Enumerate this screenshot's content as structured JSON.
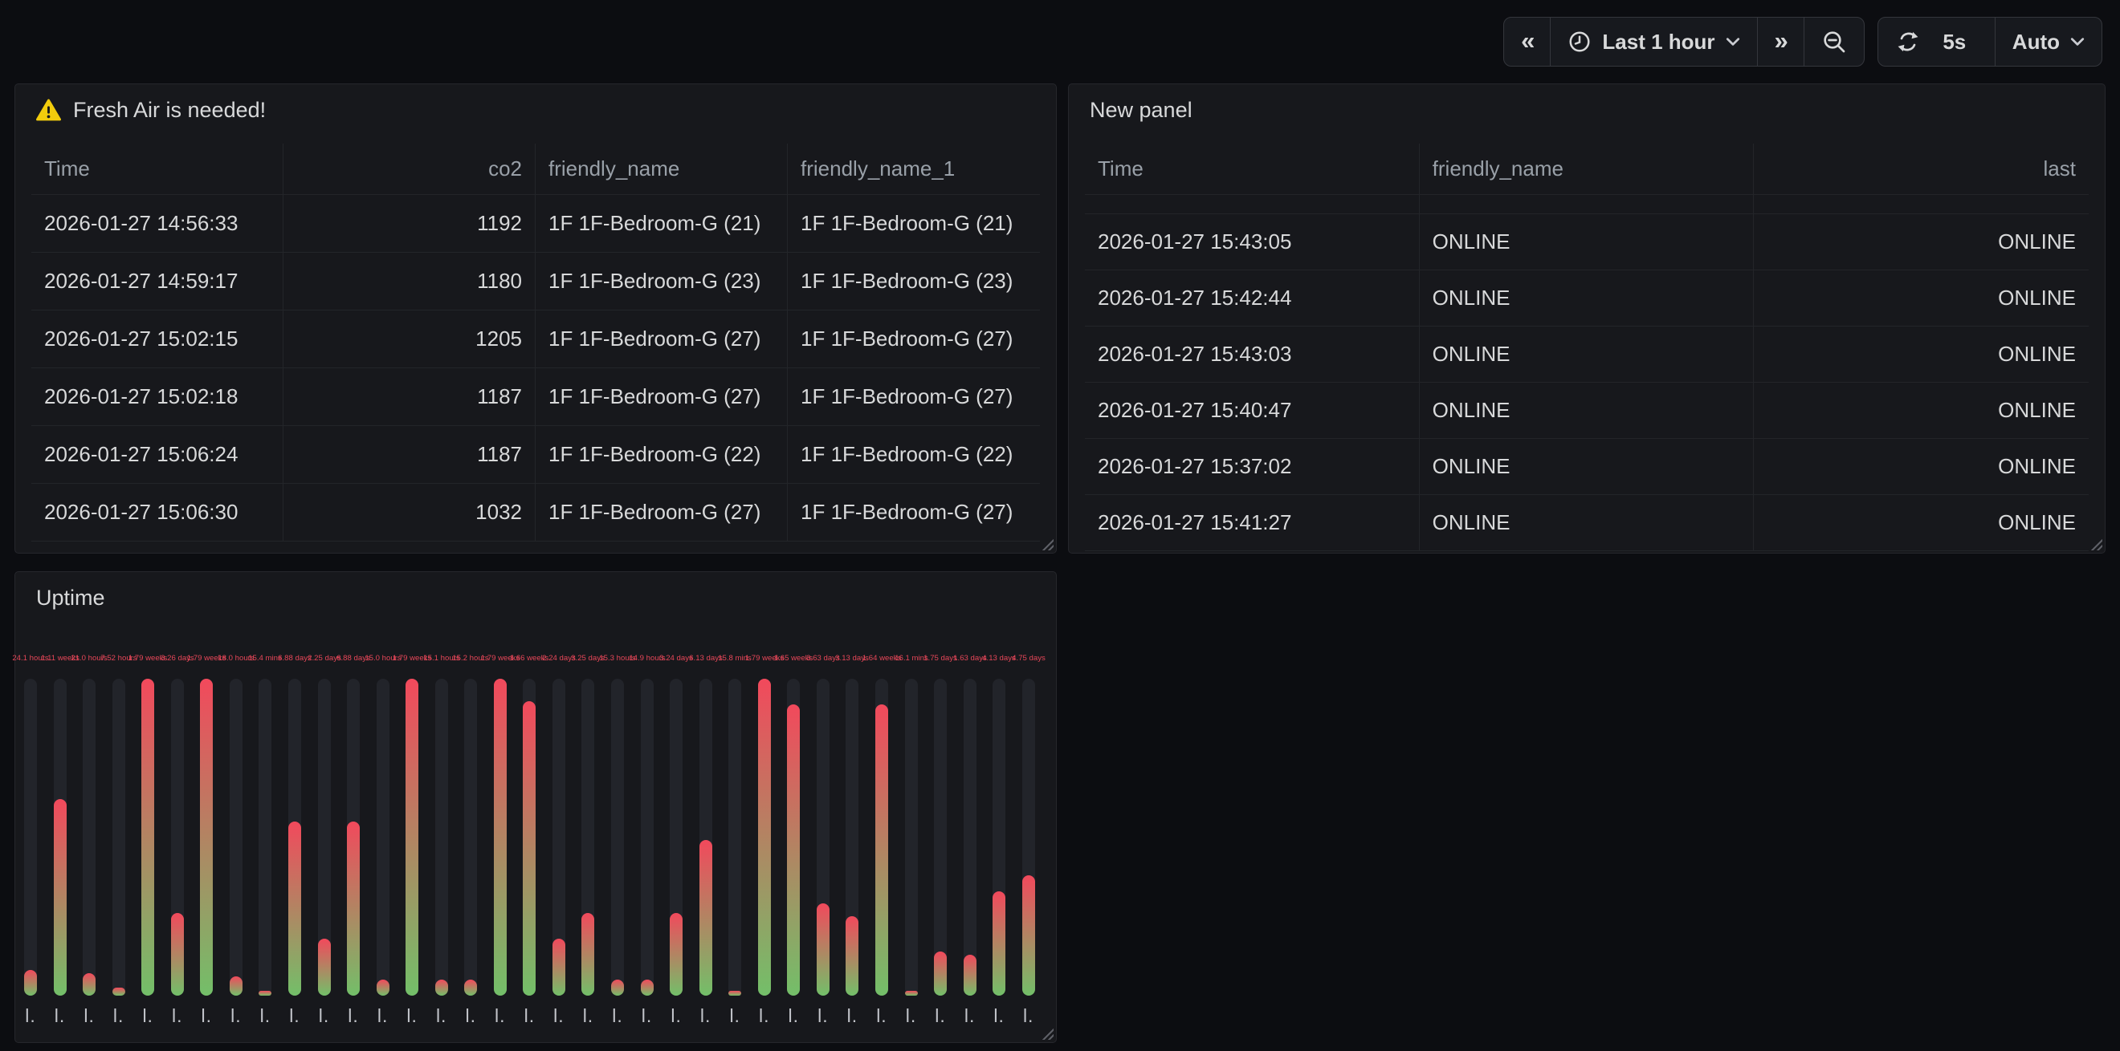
{
  "toolbar": {
    "back_glyph": "«",
    "forward_glyph": "»",
    "time_range": "Last 1 hour",
    "refresh_interval": "5s",
    "auto_label": "Auto"
  },
  "fresh_air_panel": {
    "title": "Fresh Air is needed!",
    "columns": [
      "Time",
      "co2",
      "friendly_name",
      "friendly_name_1"
    ],
    "rows": [
      [
        "2026-01-27 14:56:33",
        "1192",
        "1F 1F-Bedroom-G (21)",
        "1F 1F-Bedroom-G (21)"
      ],
      [
        "2026-01-27 14:59:17",
        "1180",
        "1F 1F-Bedroom-G (23)",
        "1F 1F-Bedroom-G (23)"
      ],
      [
        "2026-01-27 15:02:15",
        "1205",
        "1F 1F-Bedroom-G (27)",
        "1F 1F-Bedroom-G (27)"
      ],
      [
        "2026-01-27 15:02:18",
        "1187",
        "1F 1F-Bedroom-G (27)",
        "1F 1F-Bedroom-G (27)"
      ],
      [
        "2026-01-27 15:06:24",
        "1187",
        "1F 1F-Bedroom-G (22)",
        "1F 1F-Bedroom-G (22)"
      ],
      [
        "2026-01-27 15:06:30",
        "1032",
        "1F 1F-Bedroom-G (27)",
        "1F 1F-Bedroom-G (27)"
      ]
    ]
  },
  "new_panel": {
    "title": "New panel",
    "columns": [
      "Time",
      "friendly_name",
      "last"
    ],
    "rows": [
      [
        "2026-01-27 15:43:05",
        "ONLINE",
        "ONLINE"
      ],
      [
        "2026-01-27 15:42:44",
        "ONLINE",
        "ONLINE"
      ],
      [
        "2026-01-27 15:43:03",
        "ONLINE",
        "ONLINE"
      ],
      [
        "2026-01-27 15:40:47",
        "ONLINE",
        "ONLINE"
      ],
      [
        "2026-01-27 15:37:02",
        "ONLINE",
        "ONLINE"
      ],
      [
        "2026-01-27 15:41:27",
        "ONLINE",
        "ONLINE"
      ]
    ]
  },
  "uptime_panel": {
    "title": "Uptime"
  },
  "chart_data": {
    "type": "bar",
    "title": "Uptime",
    "orientation": "vertical",
    "ylim": [
      0,
      100
    ],
    "grid": false,
    "legend": false,
    "gradient_bottom_color": "#73bf69",
    "gradient_top_color": "#f2495c",
    "background_bar_color": "#22242a",
    "value_label_color": "#f2495c",
    "tick_label": "l.",
    "bars": [
      {
        "pct": 8,
        "label": "24.1 hours"
      },
      {
        "pct": 62,
        "label": "1.11 weeks"
      },
      {
        "pct": 7,
        "label": "21.0 hours"
      },
      {
        "pct": 2.5,
        "label": "7.52 hours"
      },
      {
        "pct": 100,
        "label": "1.79 weeks"
      },
      {
        "pct": 26,
        "label": "3.26 days"
      },
      {
        "pct": 100,
        "label": "1.79 weeks"
      },
      {
        "pct": 6,
        "label": "18.0 hours"
      },
      {
        "pct": 1.5,
        "label": "15.4 mins"
      },
      {
        "pct": 55,
        "label": "6.88 days"
      },
      {
        "pct": 18,
        "label": "2.25 days"
      },
      {
        "pct": 55,
        "label": "6.88 days"
      },
      {
        "pct": 5,
        "label": "15.0 hours"
      },
      {
        "pct": 100,
        "label": "1.79 weeks"
      },
      {
        "pct": 5,
        "label": "15.1 hours"
      },
      {
        "pct": 5,
        "label": "15.2 hours"
      },
      {
        "pct": 100,
        "label": "1.79 weeks"
      },
      {
        "pct": 93,
        "label": "1.66 weeks"
      },
      {
        "pct": 18,
        "label": "2.24 days"
      },
      {
        "pct": 26,
        "label": "3.25 days"
      },
      {
        "pct": 5,
        "label": "15.3 hours"
      },
      {
        "pct": 5,
        "label": "14.9 hours"
      },
      {
        "pct": 26,
        "label": "3.24 days"
      },
      {
        "pct": 49,
        "label": "6.13 days"
      },
      {
        "pct": 1.5,
        "label": "15.8 mins"
      },
      {
        "pct": 100,
        "label": "1.79 weeks"
      },
      {
        "pct": 92,
        "label": "1.65 weeks"
      },
      {
        "pct": 29,
        "label": "3.63 days"
      },
      {
        "pct": 25,
        "label": "3.13 days"
      },
      {
        "pct": 92,
        "label": "1.64 weeks"
      },
      {
        "pct": 1.5,
        "label": "16.1 mins"
      },
      {
        "pct": 14,
        "label": "1.75 days"
      },
      {
        "pct": 13,
        "label": "1.63 days"
      },
      {
        "pct": 33,
        "label": "4.13 days"
      },
      {
        "pct": 38,
        "label": "4.75 days"
      }
    ]
  }
}
